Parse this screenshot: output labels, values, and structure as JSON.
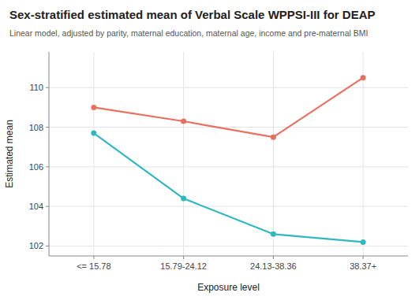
{
  "chart_data": {
    "type": "line",
    "title": "Sex-stratified estimated mean of Verbal Scale WPPSI-III for DEAP",
    "subtitle": "Linear model, adjusted by parity, maternal education, maternal age, income and pre-maternal BMI",
    "x_label": "Exposure level",
    "y_label": "Estimated mean",
    "categories": [
      "<= 15.78",
      "15.79-24.12",
      "24.13-38.36",
      "38.37+"
    ],
    "series": [
      {
        "color": "#E87060",
        "marker": "circle",
        "values": [
          109.0,
          108.3,
          107.5,
          110.5
        ]
      },
      {
        "color": "#30B8C0",
        "marker": "circle",
        "values": [
          107.7,
          104.4,
          102.6,
          102.2
        ]
      }
    ],
    "ylim": [
      101.5,
      111.8
    ],
    "yticks": [
      102,
      104,
      106,
      108,
      110
    ],
    "grid": true
  }
}
